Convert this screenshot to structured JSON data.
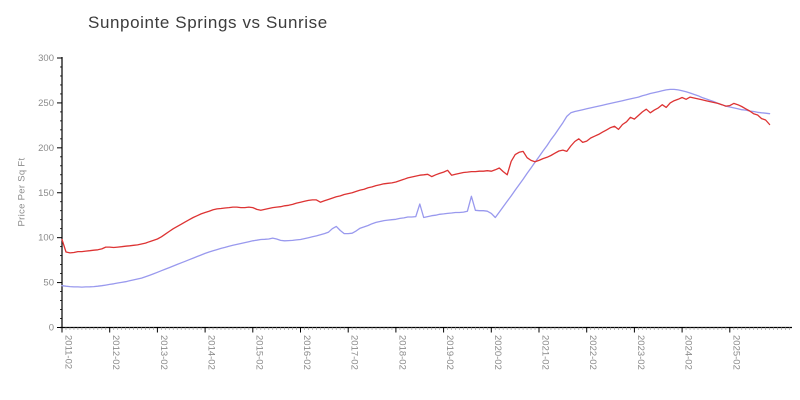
{
  "chart_data": {
    "type": "line",
    "title": "Sunpointe Springs vs Sunrise",
    "ylabel": "Price Per Sq Ft",
    "xlabel": "",
    "ylim": [
      0,
      300
    ],
    "y_ticks": [
      0,
      50,
      100,
      150,
      200,
      250,
      300
    ],
    "y_minor_tick_step": 10,
    "x_tick_labels": [
      "2011-02",
      "2012-02",
      "2013-02",
      "2014-02",
      "2015-02",
      "2016-02",
      "2017-02",
      "2018-02",
      "2019-02",
      "2020-02",
      "2021-02",
      "2022-02",
      "2023-02",
      "2024-02",
      "2025-02"
    ],
    "x_start": "2011-02",
    "x_step_months": 1,
    "grid": false,
    "legend_position": "none",
    "axis_color": "#000000",
    "tick_label_color": "#8b8b8b",
    "title_color": "#3c3c3c",
    "series": [
      {
        "name": "Sunpointe Springs",
        "color": "#dd3333",
        "values": [
          98,
          84,
          83,
          83.5,
          84.5,
          84.5,
          85,
          85.5,
          86,
          86.5,
          87.5,
          89.5,
          89.5,
          89,
          89.5,
          90,
          90.5,
          91,
          91.5,
          92,
          93,
          94,
          95.5,
          97,
          98.5,
          101,
          104,
          107,
          110,
          112.5,
          115,
          117.5,
          120,
          122.5,
          124.5,
          126.5,
          128,
          129.5,
          131,
          132,
          132.5,
          133,
          133.5,
          134,
          134,
          133.5,
          133.5,
          134,
          133.5,
          131.5,
          130.5,
          131.5,
          132.5,
          133.5,
          134,
          134.5,
          135.5,
          136,
          137,
          138.5,
          139.5,
          140.5,
          141.5,
          142,
          142,
          139.5,
          141,
          142.5,
          144,
          145.5,
          146.5,
          148,
          149,
          150,
          151.5,
          153,
          154,
          155.5,
          156.5,
          158,
          159,
          160,
          160.5,
          161,
          162,
          163.5,
          165,
          166.5,
          167.5,
          168.5,
          169.5,
          170,
          170.5,
          168,
          170,
          171.5,
          173,
          175,
          169.5,
          170.5,
          171.5,
          172.5,
          173,
          173.5,
          173.5,
          174,
          174,
          174.5,
          174,
          175.5,
          177.5,
          173.5,
          170,
          185,
          192.5,
          195,
          196,
          189,
          186,
          184.5,
          186,
          188,
          189.5,
          191.5,
          194,
          196.5,
          197.5,
          196,
          202,
          207,
          210,
          206,
          207.5,
          211,
          213,
          215,
          217.5,
          220,
          222.5,
          224,
          220.5,
          226,
          229,
          234,
          232,
          236,
          240,
          243,
          239,
          242,
          244.5,
          248,
          245,
          250,
          252.5,
          254,
          256,
          254,
          256.5,
          255.5,
          254.5,
          253.5,
          252.5,
          251.5,
          250.5,
          249.5,
          248,
          246.5,
          247,
          249.5,
          248,
          246,
          243.5,
          241,
          238,
          236.5,
          232.5,
          231,
          226
        ]
      },
      {
        "name": "Sunrise",
        "color": "#9999ee",
        "values": [
          46.5,
          46,
          45.5,
          45.2,
          45.2,
          45,
          45.2,
          45.3,
          45.5,
          46,
          46.5,
          47.2,
          48,
          48.7,
          49.5,
          50.2,
          51,
          52,
          53,
          54,
          55,
          56.5,
          58,
          59.7,
          61.5,
          63.2,
          65,
          66.7,
          68.5,
          70.2,
          72,
          73.7,
          75.5,
          77.2,
          79,
          80.7,
          82.5,
          84,
          85.5,
          86.7,
          88,
          89.2,
          90.5,
          91.5,
          92.5,
          93.5,
          94.5,
          95.5,
          96.5,
          97.2,
          98,
          98.2,
          98.5,
          99.5,
          98.5,
          97,
          96.5,
          96.7,
          97,
          97.5,
          98,
          99,
          100,
          101,
          102,
          103.2,
          104.5,
          106,
          110,
          112.5,
          108,
          104.5,
          104.5,
          105,
          107.5,
          110.5,
          112,
          113.5,
          115.5,
          117,
          118,
          119,
          119.5,
          120,
          120.5,
          121.5,
          122,
          123,
          123,
          123.5,
          137.5,
          122.5,
          123.5,
          124.5,
          125,
          126,
          126.5,
          127,
          127.5,
          128,
          128,
          128.5,
          129.5,
          146,
          130.5,
          130,
          130,
          129.5,
          127,
          122.5,
          128.5,
          134.5,
          140.5,
          146.5,
          153,
          159,
          165,
          171.5,
          177.5,
          184,
          190,
          196.5,
          202.5,
          209,
          215,
          221.5,
          228,
          235,
          239,
          240.5,
          241.5,
          242.5,
          243.5,
          244.5,
          245.5,
          246.5,
          247.5,
          248.5,
          249.5,
          250.5,
          251.5,
          252.5,
          253.5,
          254.5,
          255.5,
          256.5,
          258,
          259,
          260.5,
          261.5,
          262.5,
          263.5,
          264.5,
          265,
          265,
          264.5,
          263.5,
          262.5,
          261,
          259.5,
          258,
          256,
          254.5,
          253,
          251.5,
          249.5,
          248,
          246.5,
          245.5,
          244.5,
          243.5,
          242.5,
          242,
          241,
          240.5,
          239.5,
          239,
          238.5,
          238
        ]
      }
    ]
  }
}
